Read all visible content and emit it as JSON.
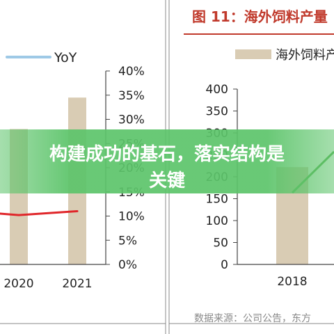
{
  "banner": {
    "line1": "构建成功的基石，落实结构是",
    "line2": "关键"
  },
  "colors": {
    "bar": "#d9ccb4",
    "red_line": "#e0262a",
    "blue_line": "#9ec9e6",
    "green_line": "#5fb45a",
    "title_red": "#c0392b",
    "rule_red": "#c0392b",
    "banner_green": "#5cc46a"
  },
  "chart_data": [
    {
      "type": "bar",
      "legend": [
        {
          "name": "YoY",
          "kind": "line",
          "color": "#9ec9e6"
        }
      ],
      "categories": [
        "2020",
        "2021"
      ],
      "right_axis_ticks": [
        "0%",
        "5%",
        "10%",
        "15%",
        "20%",
        "25%",
        "30%",
        "35%",
        "40%"
      ],
      "right_axis_range": [
        0,
        40
      ],
      "bars": [
        {
          "category": "2020",
          "value": 28
        },
        {
          "category": "2021",
          "value": 34.5
        }
      ],
      "red_series": [
        {
          "x": "2020",
          "y": 10.2
        },
        {
          "x": "2021",
          "y": 11
        }
      ],
      "grid": false
    },
    {
      "type": "bar",
      "title": "图 11：海外饲料产量",
      "legend": [
        {
          "name": "海外饲料产",
          "kind": "bar",
          "color": "#d9ccb4"
        }
      ],
      "categories": [
        "2018"
      ],
      "y_ticks": [
        "0",
        "50",
        "100",
        "150",
        "200",
        "250",
        "300",
        "350",
        "400"
      ],
      "ylim": [
        0,
        400
      ],
      "bars": [
        {
          "category": "2018",
          "value": 222
        }
      ],
      "grid": false,
      "source": "数据来源：公司公告，东方"
    }
  ]
}
